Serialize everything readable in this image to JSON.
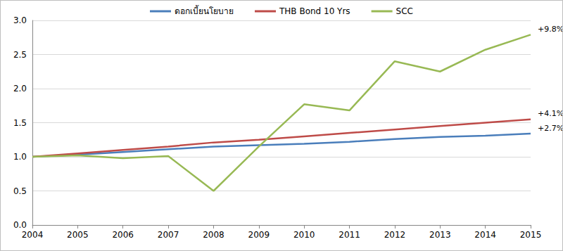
{
  "chart_data": {
    "type": "line",
    "categories": [
      "2004",
      "2005",
      "2006",
      "2007",
      "2008",
      "2009",
      "2010",
      "2011",
      "2012",
      "2013",
      "2014",
      "2015"
    ],
    "series": [
      {
        "name": "ดอกเบี้ยนโยบาย",
        "color": "#4a7ebb",
        "annotation": "+2.7%",
        "values": [
          1.0,
          1.03,
          1.07,
          1.11,
          1.15,
          1.17,
          1.19,
          1.22,
          1.26,
          1.29,
          1.31,
          1.34
        ]
      },
      {
        "name": "THB Bond 10 Yrs",
        "color": "#be4b48",
        "annotation": "+4.1%",
        "values": [
          1.0,
          1.05,
          1.1,
          1.15,
          1.21,
          1.25,
          1.3,
          1.35,
          1.4,
          1.45,
          1.5,
          1.55
        ]
      },
      {
        "name": "SCC",
        "color": "#98b954",
        "annotation": "+9.8%",
        "values": [
          1.0,
          1.02,
          0.98,
          1.01,
          0.5,
          1.15,
          1.77,
          1.68,
          2.4,
          2.25,
          2.57,
          2.79
        ]
      }
    ],
    "ylim": [
      0,
      3
    ],
    "yticks": [
      {
        "value": 0,
        "label": "0.0"
      },
      {
        "value": 0.5,
        "label": "0.5"
      },
      {
        "value": 1,
        "label": "1.0"
      },
      {
        "value": 1.5,
        "label": "1.5"
      },
      {
        "value": 2,
        "label": "2.0"
      },
      {
        "value": 2.5,
        "label": "2.5"
      },
      {
        "value": 3,
        "label": "3.0"
      }
    ],
    "grid": true,
    "legend": "top"
  }
}
